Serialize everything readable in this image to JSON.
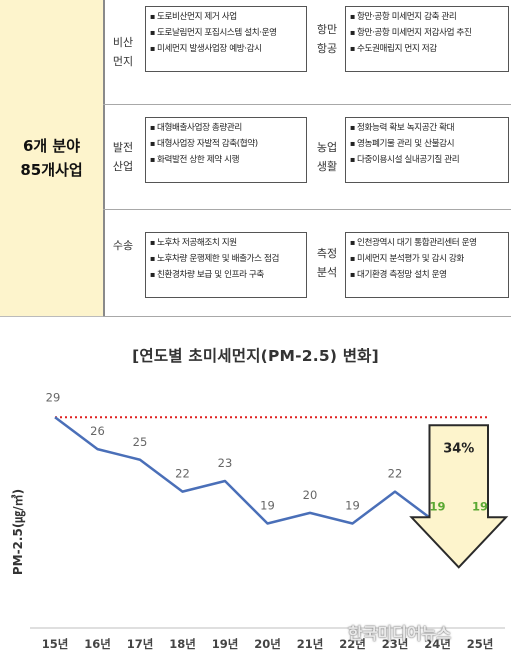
{
  "left_cell": {
    "line1": "6개 분야",
    "line2": "85개사업"
  },
  "rows": [
    {
      "left_category": "비산\n먼지",
      "left_items": [
        "도로비산먼지 제거 사업",
        "도로날림먼지 포집시스템 설치·운영",
        "미세먼지 발생사업장 예방·감시"
      ],
      "right_category": "항만\n항공",
      "right_items": [
        "항만·공항 미세먼지 감축 관리",
        "항만·공항 미세먼지 저감사업 추진",
        "수도권매립지 먼지 저감"
      ]
    },
    {
      "left_category": "발전\n산업",
      "left_items": [
        "대형배출사업장 총량관리",
        "대형사업장 자발적 감축(협약)",
        "화력발전 상한 제약 시행"
      ],
      "right_category": "농업\n생활",
      "right_items": [
        "정화능력 확보 녹지공간 확대",
        "영농폐기물 관리 및 산불감시",
        "다중이용시설 실내공기질 관리"
      ]
    },
    {
      "left_category": "수송",
      "left_items": [
        "노후차 저공해조치 지원",
        "노후차량 운행제한 및 배출가스 점검",
        "친환경차량 보급 및 인프라 구축"
      ],
      "right_category": "측정\n분석",
      "right_items": [
        "인천광역시 대기 통합관리센터 운영",
        "미세먼지 분석평가 및 감시 강화",
        "대기환경 측정망 설치 운영"
      ]
    }
  ],
  "chart_data": {
    "type": "line",
    "title": "[연도별 초미세먼지(PM-2.5) 변화]",
    "ylabel": "PM-2.5(㎍/㎥)",
    "xlabel": "",
    "categories": [
      "15년",
      "16년",
      "17년",
      "18년",
      "19년",
      "20년",
      "21년",
      "22년",
      "23년",
      "24년",
      "25년"
    ],
    "values": [
      29,
      26,
      25,
      22,
      23,
      19,
      20,
      19,
      22,
      19,
      19
    ],
    "value_labels": [
      "29",
      "26",
      "25",
      "22",
      "23",
      "19",
      "20",
      "19",
      "22",
      "19",
      "19"
    ],
    "highlighted_labels": [
      9,
      10
    ],
    "ylim": [
      15,
      31
    ],
    "reference_line": {
      "value": 29,
      "style": "dotted",
      "color": "#e02020"
    },
    "annotation": {
      "text": "34%",
      "type": "down-arrow",
      "fill": "#fdf4cc"
    },
    "colors": {
      "line": "#4a6fb8",
      "label": "#666666",
      "highlight_label": "#5aa832",
      "axis": "#bfbfbf"
    },
    "grid": false
  },
  "watermark": "한국미디어뉴스"
}
